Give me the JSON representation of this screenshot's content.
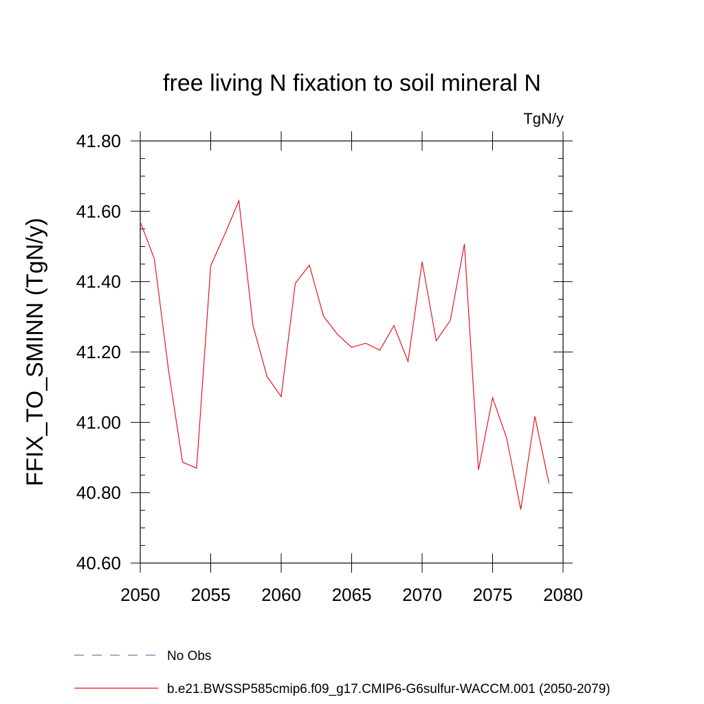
{
  "chart_data": {
    "type": "line",
    "title": "free living N fixation to soil mineral N",
    "units": "TgN/y",
    "ylabel": "FFIX_TO_SMINN  (TgN/y)",
    "xlabel": "",
    "xlim": [
      2050,
      2080
    ],
    "ylim": [
      40.6,
      41.8
    ],
    "x_ticks": [
      2050,
      2055,
      2060,
      2065,
      2070,
      2075,
      2080
    ],
    "x_tick_labels": [
      "2050",
      "2055",
      "2060",
      "2065",
      "2070",
      "2075",
      "2080"
    ],
    "y_ticks": [
      40.6,
      40.8,
      41.0,
      41.2,
      41.4,
      41.6,
      41.8
    ],
    "y_tick_labels": [
      "40.60",
      "40.80",
      "41.00",
      "41.20",
      "41.40",
      "41.60",
      "41.80"
    ],
    "grid": false,
    "legend_position": "bottom",
    "series": [
      {
        "name": "b.e21.BWSSP585cmip6.f09_g17.CMIP6-G6sulfur-WACCM.001 (2050-2079)",
        "color": "#e8131b",
        "style": "solid",
        "x": [
          2050,
          2051,
          2052,
          2053,
          2054,
          2055,
          2056,
          2057,
          2058,
          2059,
          2060,
          2061,
          2062,
          2063,
          2064,
          2065,
          2066,
          2067,
          2068,
          2069,
          2070,
          2071,
          2072,
          2073,
          2074,
          2075,
          2076,
          2077,
          2078,
          2079
        ],
        "values": [
          41.57,
          41.465,
          41.15,
          40.887,
          40.87,
          41.445,
          41.535,
          41.63,
          41.275,
          41.13,
          41.073,
          41.395,
          41.447,
          41.302,
          41.25,
          41.213,
          41.225,
          41.205,
          41.275,
          41.173,
          41.457,
          41.232,
          41.29,
          41.507,
          40.865,
          41.07,
          40.955,
          40.752,
          41.017,
          40.827
        ]
      }
    ],
    "legend": [
      {
        "label": "No Obs",
        "color": "#7b6fb3",
        "style": "dashed"
      },
      {
        "label": "b.e21.BWSSP585cmip6.f09_g17.CMIP6-G6sulfur-WACCM.001 (2050-2079)",
        "color": "#e8131b",
        "style": "solid"
      }
    ]
  }
}
